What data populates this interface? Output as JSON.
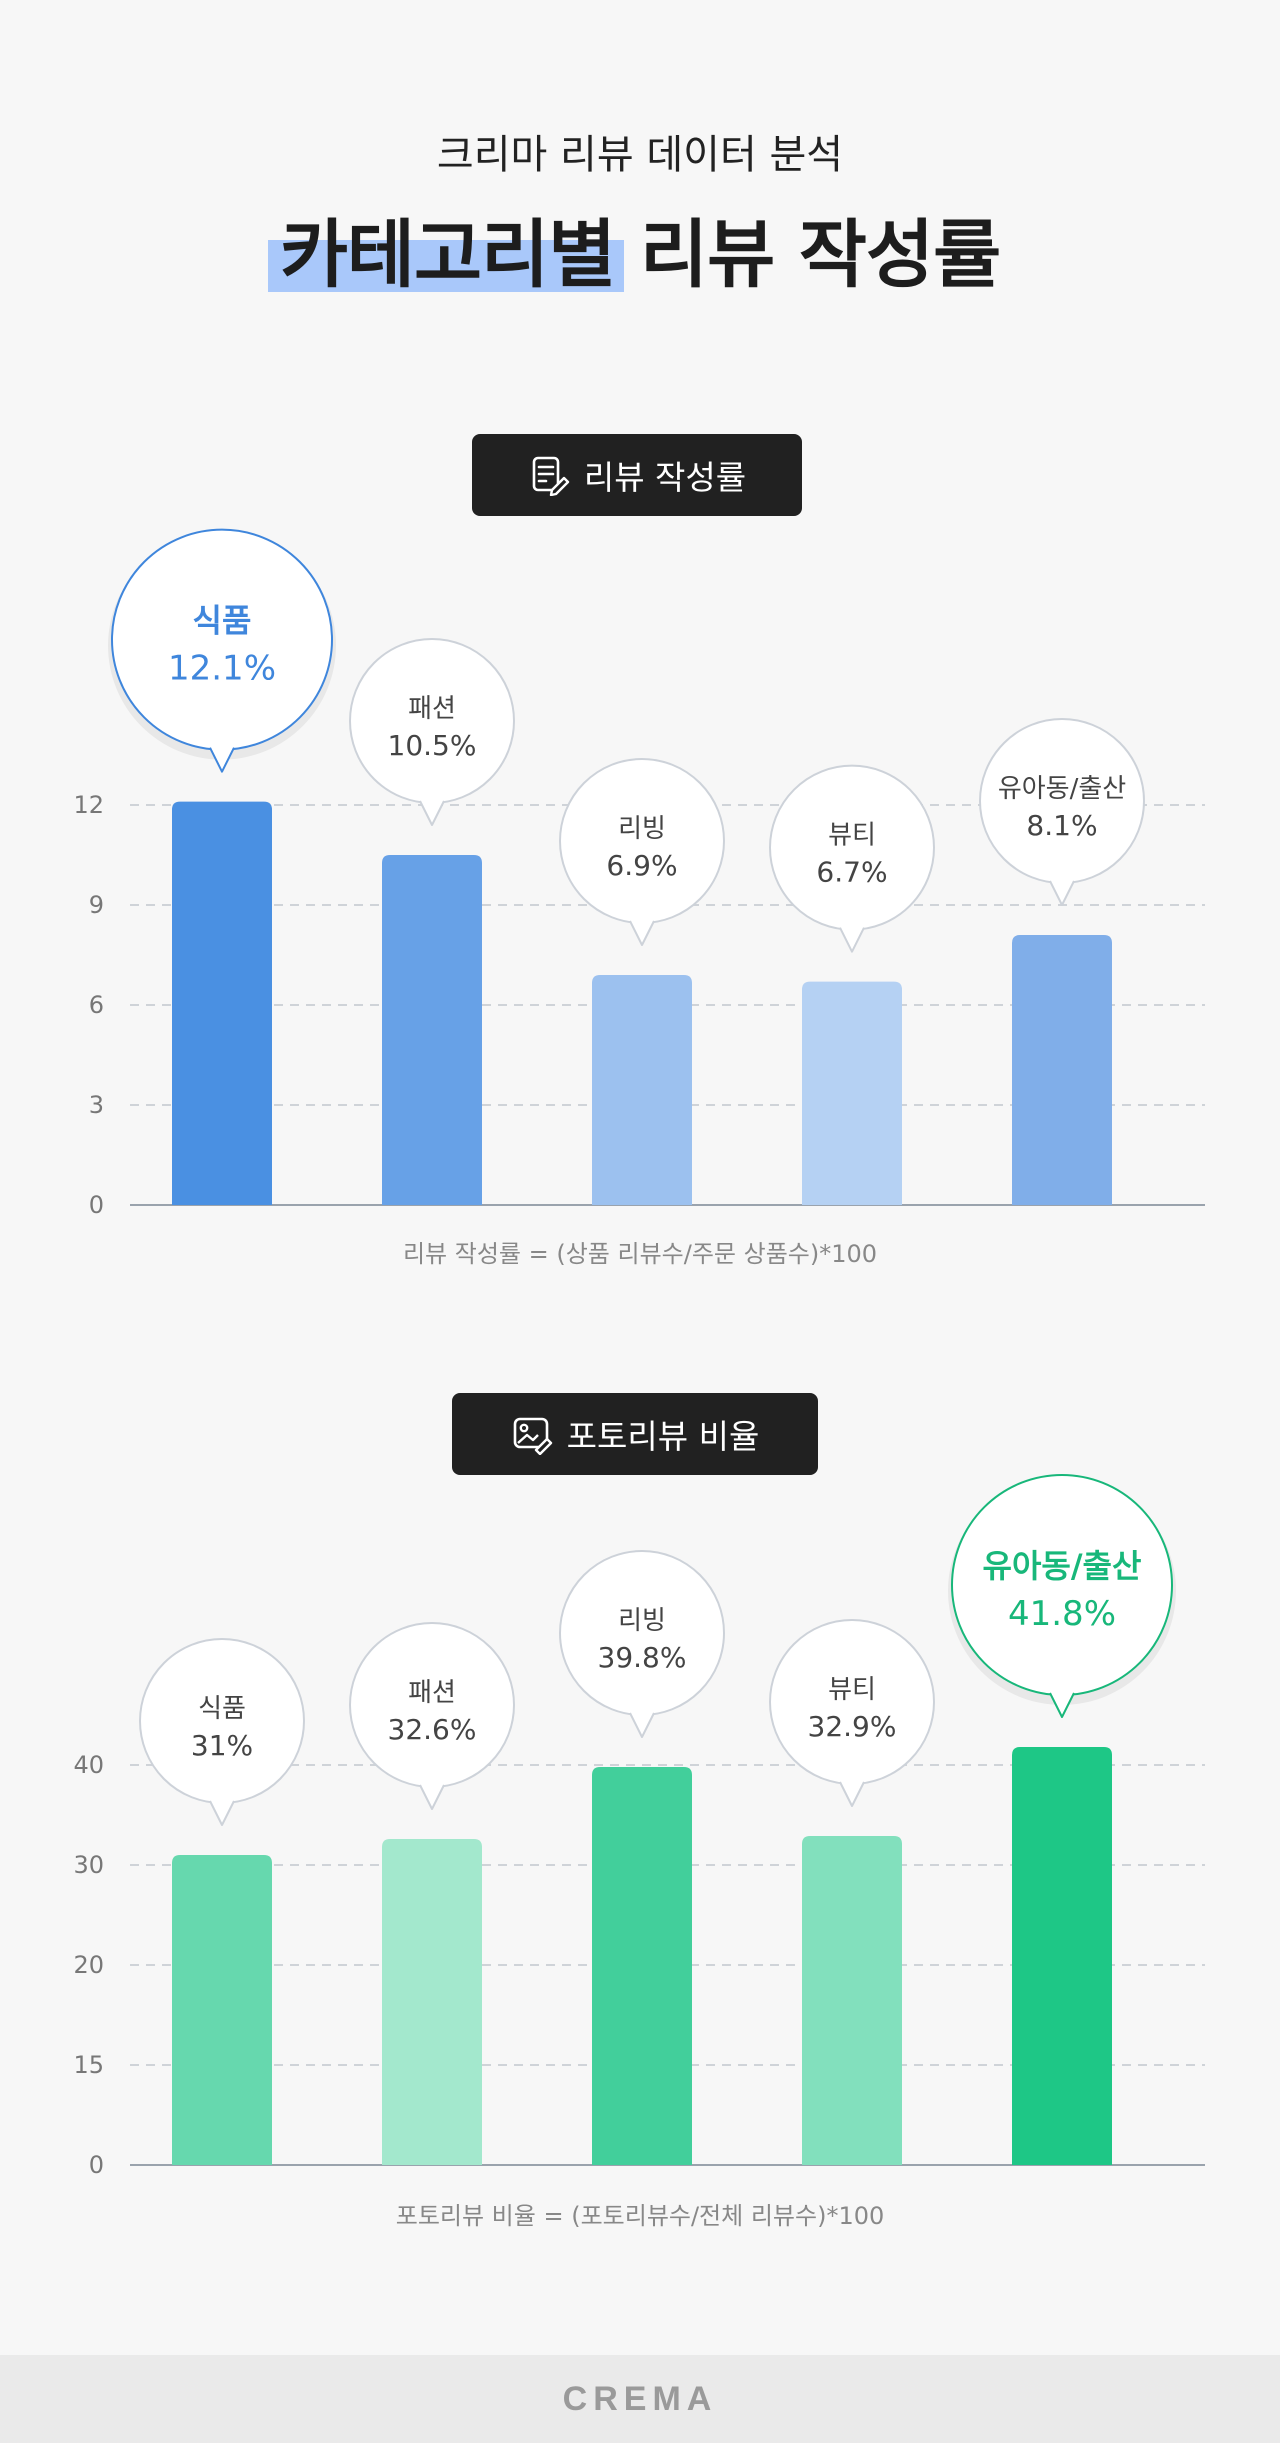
{
  "header": {
    "subtitle": "크리마 리뷰 데이터 분석",
    "title": "카테고리별 리뷰 작성률"
  },
  "section1": {
    "pill_label": "리뷰 작성률",
    "pill_icon": "document-pencil-icon",
    "formula": "리뷰 작성률 = (상품 리뷰수/주문 상품수)*100"
  },
  "section2": {
    "pill_label": "포토리뷰 비율",
    "pill_icon": "image-pencil-icon",
    "formula": "포토리뷰 비율 = (포토리뷰수/전체 리뷰수)*100"
  },
  "footer": {
    "logo": "CREMA"
  },
  "chart_data": [
    {
      "type": "bar",
      "categories": [
        "식품",
        "패션",
        "리빙",
        "뷰티",
        "유아동/출산"
      ],
      "values": [
        12.1,
        10.5,
        6.9,
        6.7,
        8.1
      ],
      "labels": [
        "12.1%",
        "10.5%",
        "6.9%",
        "6.7%",
        "8.1%"
      ],
      "yticks": [
        "0",
        "3",
        "6",
        "9",
        "12"
      ],
      "ylim": [
        0,
        12
      ],
      "highlight_index": 0,
      "colors": [
        "#4a90e2",
        "#67a1e7",
        "#9cc1ef",
        "#b5d1f3",
        "#80aee9"
      ],
      "highlight_color": "#3f86dc"
    },
    {
      "type": "bar",
      "categories": [
        "식품",
        "패션",
        "리빙",
        "뷰티",
        "유아동/출산"
      ],
      "values": [
        31,
        32.6,
        39.8,
        32.9,
        41.8
      ],
      "labels": [
        "31%",
        "32.6%",
        "39.8%",
        "32.9%",
        "41.8%"
      ],
      "yticks": [
        "0",
        "15",
        "20",
        "30",
        "40"
      ],
      "ylim": [
        0,
        40
      ],
      "highlight_index": 4,
      "colors": [
        "#66d8ae",
        "#a3e8cd",
        "#42cf9b",
        "#82e0bd",
        "#1ec786"
      ],
      "highlight_color": "#18b77a"
    }
  ]
}
